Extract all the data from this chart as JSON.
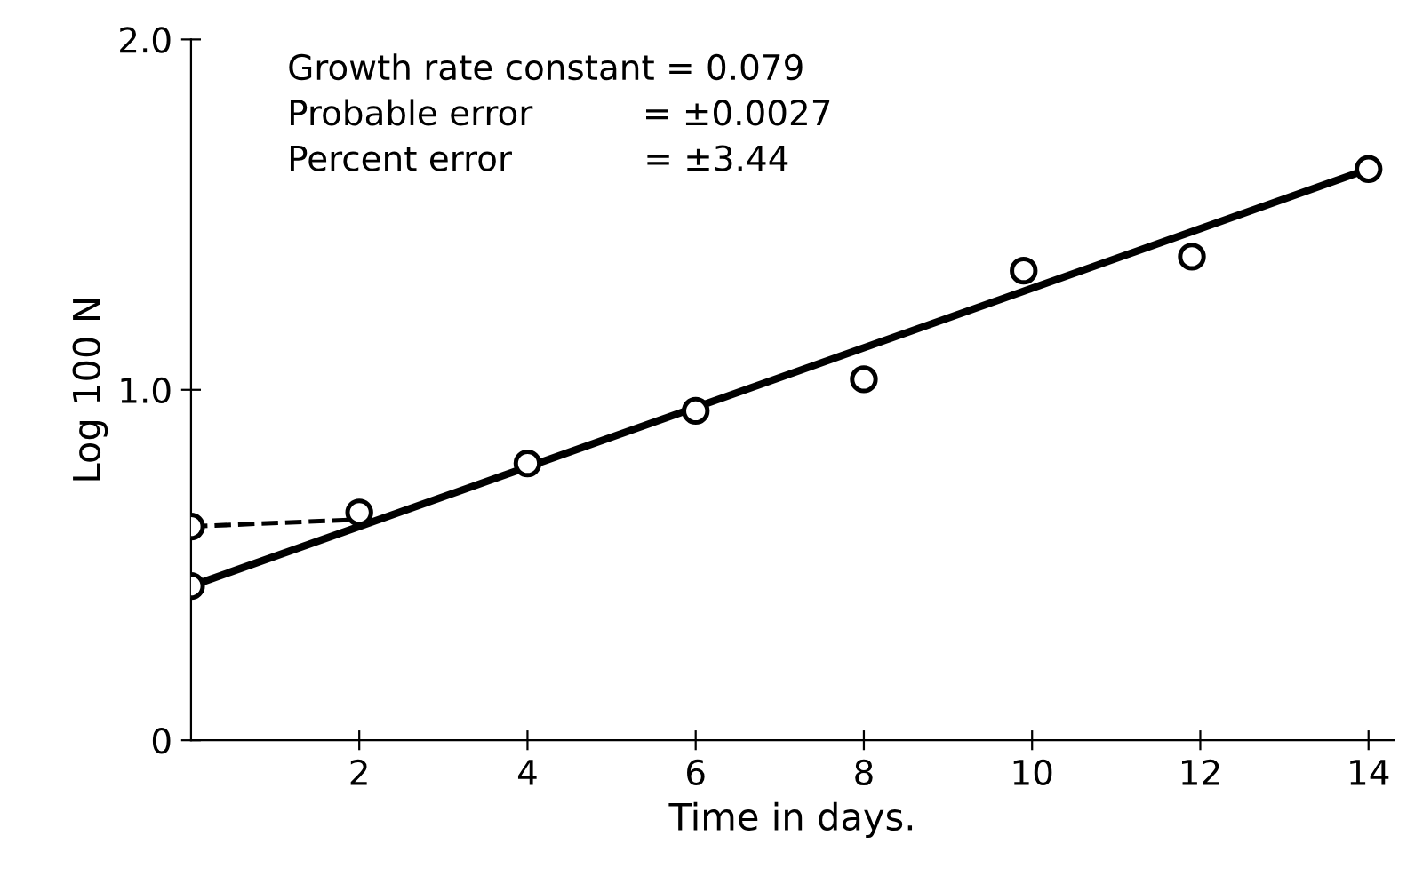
{
  "chart_data": {
    "type": "scatter",
    "xlabel": "Time in days.",
    "ylabel": "Log 100 N",
    "x": [
      0,
      0,
      2,
      4,
      6,
      8,
      9.9,
      11.9,
      14
    ],
    "series": [
      {
        "color": "#000000",
        "marker": "circle",
        "values": [
          0.44,
          0.61,
          0.65,
          0.79,
          0.94,
          1.03,
          1.34,
          1.38,
          1.63
        ]
      },
      {
        "type": "line",
        "color": "#000000",
        "line_style": "solid",
        "x": [
          0,
          14
        ],
        "values": [
          0.44,
          1.63
        ]
      },
      {
        "type": "line",
        "color": "#000000",
        "line_style": "dashed",
        "x": [
          0,
          2
        ],
        "values": [
          0.61,
          0.63
        ]
      }
    ],
    "xlim": [
      0,
      14.3
    ],
    "xticks": [
      2,
      4,
      6,
      8,
      10,
      12,
      14
    ],
    "ylim": [
      0,
      2.0
    ],
    "yticks": [
      0,
      {
        "value": 1,
        "label": "1.0"
      },
      {
        "value": 2,
        "label": "2.0"
      }
    ],
    "grid": false,
    "legend": false,
    "annotations": [
      "Growth rate constant = 0.079",
      "Probable error          = ±0.0027",
      "Percent error            = ±3.44"
    ]
  }
}
